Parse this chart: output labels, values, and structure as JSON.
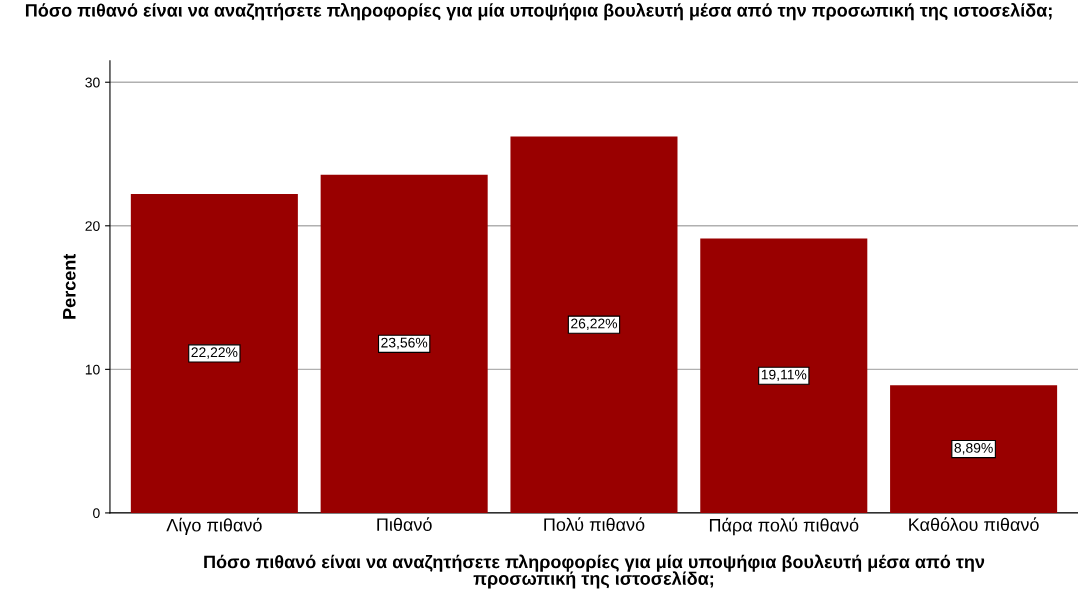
{
  "chart_data": {
    "type": "bar",
    "title": "Πόσο πιθανό είναι να αναζητήσετε πληροφορίες για μία υποψήφια βουλευτή μέσα από την προσωπική της ιστοσελίδα;",
    "xlabel": "Πόσο πιθανό είναι να αναζητήσετε πληροφορίες για μία υποψήφια βουλευτή μέσα από την\nπροσωπική της ιστοσελίδα;",
    "ylabel": "Percent",
    "categories": [
      "Λίγο πιθανό",
      "Πιθανό",
      "Πολύ πιθανό",
      "Πάρα πολύ πιθανό",
      "Καθόλου πιθανό"
    ],
    "values": [
      22.22,
      23.56,
      26.22,
      19.11,
      8.89
    ],
    "value_labels": [
      "22,22%",
      "23,56%",
      "26,22%",
      "19,11%",
      "8,89%"
    ],
    "color": "#990000",
    "ylim": [
      0,
      31.5
    ],
    "yticks": [
      0,
      10,
      20,
      30
    ],
    "grid": "y",
    "legend": false
  }
}
